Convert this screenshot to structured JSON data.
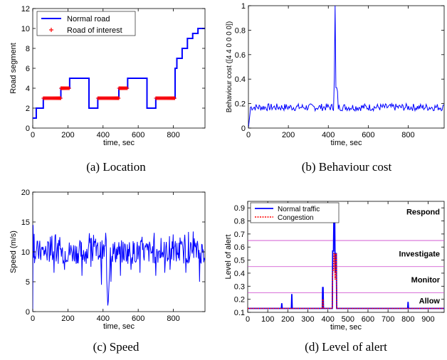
{
  "chart_data": [
    {
      "id": "a",
      "type": "line",
      "caption": "(a) Location",
      "xlabel": "time, sec",
      "ylabel": "Road segment",
      "xlim": [
        0,
        980
      ],
      "ylim": [
        0,
        12
      ],
      "xticks": [
        0,
        200,
        400,
        600,
        800
      ],
      "yticks": [
        0,
        2,
        4,
        6,
        8,
        10,
        12
      ],
      "legend": {
        "placement": "top-left",
        "entries": [
          "Normal road",
          "Road of interest"
        ]
      },
      "series": [
        {
          "name": "Normal road",
          "color": "#0000ff",
          "x": [
            0,
            20,
            20,
            60,
            60,
            160,
            160,
            210,
            210,
            320,
            320,
            370,
            370,
            490,
            490,
            540,
            540,
            650,
            650,
            700,
            700,
            810,
            810,
            820,
            820,
            850,
            850,
            880,
            880,
            910,
            910,
            940,
            940,
            960,
            960,
            980
          ],
          "y": [
            1,
            1,
            2,
            2,
            3,
            3,
            4,
            4,
            5,
            5,
            2,
            2,
            3,
            3,
            4,
            4,
            5,
            5,
            2,
            2,
            3,
            3,
            6,
            6,
            7,
            7,
            8,
            8,
            9,
            9,
            9.5,
            9.5,
            10,
            10,
            10,
            10
          ]
        },
        {
          "name": "Road of interest",
          "color": "#ff0000",
          "marker": "+",
          "segments": [
            [
              60,
              160,
              3
            ],
            [
              160,
              210,
              4
            ],
            [
              370,
              490,
              3
            ],
            [
              490,
              540,
              4
            ],
            [
              700,
              810,
              3
            ]
          ]
        }
      ]
    },
    {
      "id": "b",
      "type": "line",
      "caption": "(b) Behaviour cost",
      "xlabel": "time, sec",
      "ylabel": "Behaviour cost ([4 4 0 0 0 0])",
      "xlim": [
        0,
        980
      ],
      "ylim": [
        0,
        1
      ],
      "xticks": [
        0,
        200,
        400,
        600,
        800
      ],
      "yticks": [
        0,
        0.2,
        0.4,
        0.6,
        0.8,
        1
      ],
      "series": [
        {
          "name": "",
          "color": "#0000ff",
          "baseline": [
            0.14,
            0.2
          ],
          "start": [
            0,
            0
          ],
          "spikes": [
            [
              430,
              0.4
            ],
            [
              435,
              1.0
            ],
            [
              440,
              0.33
            ],
            [
              445,
              0.3
            ]
          ]
        }
      ]
    },
    {
      "id": "c",
      "type": "line",
      "caption": "(c) Speed",
      "xlabel": "time, sec",
      "ylabel": "Speed (m/s)",
      "xlim": [
        0,
        980
      ],
      "ylim": [
        0,
        20
      ],
      "xticks": [
        0,
        200,
        400,
        600,
        800
      ],
      "yticks": [
        0,
        5,
        10,
        15,
        20
      ],
      "series": [
        {
          "name": "",
          "color": "#0000ff",
          "baseline": [
            8,
            12
          ],
          "start": [
            0,
            0,
            14.5,
            9
          ],
          "dips": [
            [
              120,
              6.5
            ],
            [
              180,
              7
            ],
            [
              280,
              6
            ],
            [
              330,
              7.5
            ],
            [
              390,
              4.5
            ],
            [
              428,
              0.3
            ],
            [
              445,
              5
            ],
            [
              500,
              6
            ],
            [
              560,
              7
            ],
            [
              610,
              6.5
            ],
            [
              700,
              6
            ],
            [
              750,
              6.5
            ],
            [
              780,
              7
            ],
            [
              870,
              6.5
            ],
            [
              950,
              5
            ]
          ]
        }
      ]
    },
    {
      "id": "d",
      "type": "line",
      "caption": "(d) Level of alert",
      "xlabel": "time, sec",
      "ylabel": "Level of alert",
      "xlim": [
        0,
        980
      ],
      "ylim": [
        0.1,
        0.95
      ],
      "xticks": [
        0,
        100,
        200,
        300,
        400,
        500,
        600,
        700,
        800,
        900
      ],
      "yticks": [
        0.1,
        0.2,
        0.3,
        0.4,
        0.5,
        0.6,
        0.7,
        0.8,
        0.9
      ],
      "legend": {
        "placement": "top-left",
        "entries": [
          "Normal traffic",
          "Congestion"
        ]
      },
      "thresholds": [
        0.25,
        0.45,
        0.65
      ],
      "zones": [
        {
          "label": "Respond",
          "y": 0.87
        },
        {
          "label": "Investigate",
          "y": 0.55
        },
        {
          "label": "Monitor",
          "y": 0.35
        },
        {
          "label": "Allow",
          "y": 0.19
        }
      ],
      "series": [
        {
          "name": "Normal traffic",
          "color": "#0000ff",
          "base": 0.13,
          "spikes": [
            [
              170,
              0.17
            ],
            [
              220,
              0.24
            ],
            [
              375,
              0.29
            ],
            [
              425,
              0.57
            ],
            [
              432,
              0.83
            ],
            [
              436,
              0.4
            ],
            [
              440,
              0.55
            ],
            [
              800,
              0.18
            ]
          ]
        },
        {
          "name": "Congestion",
          "color": "#ff0000",
          "base": 0.13,
          "spikes": [
            [
              375,
              0.2
            ],
            [
              425,
              0.42
            ],
            [
              432,
              0.55
            ],
            [
              436,
              0.35
            ],
            [
              440,
              0.55
            ]
          ]
        }
      ]
    }
  ]
}
